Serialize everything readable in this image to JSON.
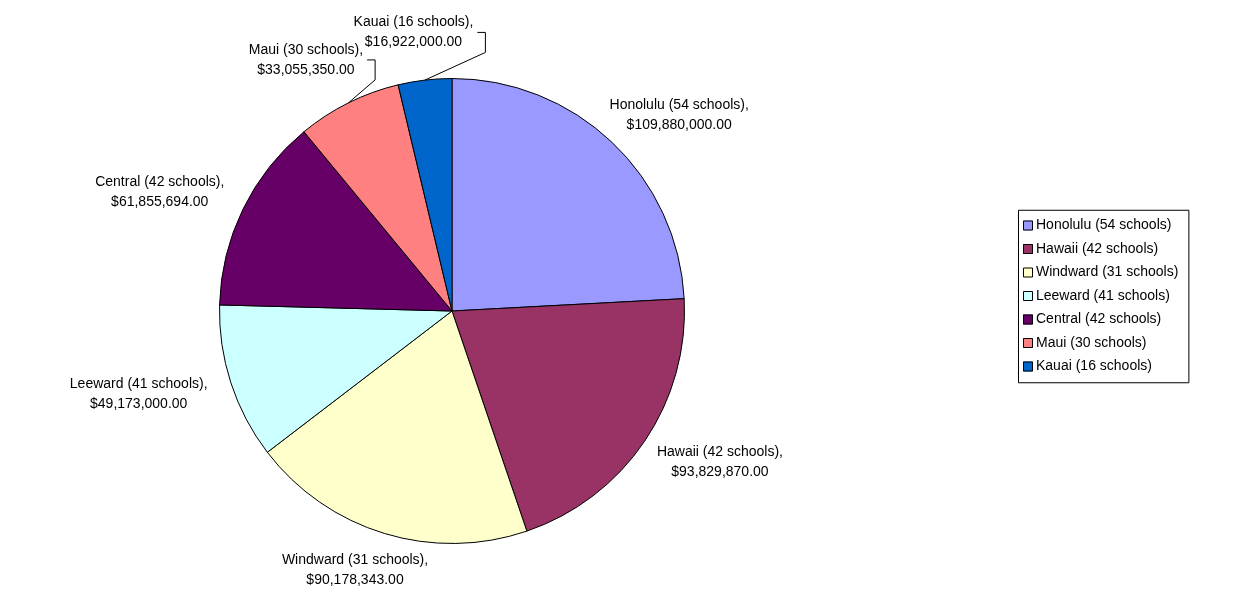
{
  "chart_data": {
    "type": "pie",
    "categories": [
      "Honolulu (54 schools)",
      "Hawaii (42 schools)",
      "Windward (31 schools)",
      "Leeward (41 schools)",
      "Central (42 schools)",
      "Maui (30 schools)",
      "Kauai (16 schools)"
    ],
    "values": [
      109880000,
      93829870,
      90178343,
      49173000,
      61855694,
      33055350,
      16922000
    ],
    "colors": [
      "#9999ff",
      "#993366",
      "#ffffcc",
      "#ccffff",
      "#660066",
      "#ff8080",
      "#0066cc"
    ],
    "value_labels": [
      "Honolulu (54 schools),\n$109,880,000.00",
      "Hawaii (42 schools),\n$93,829,870.00",
      "Windward (31 schools),\n$90,178,343.00",
      "Leeward (41 schools),\n$49,173,000.00",
      "Central (42 schools),\n$61,855,694.00",
      "Maui (30 schools),\n$33,055,350.00",
      "Kauai (16 schools),\n$16,922,000.00"
    ],
    "legend": "right"
  }
}
